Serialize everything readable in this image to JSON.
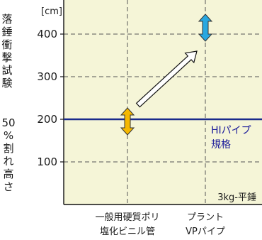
{
  "chart_data": {
    "type": "scatter",
    "categories": [
      "一般用硬質ポリ\n塩化ビニル管",
      "プラント\nVPパイプ"
    ],
    "series": [
      {
        "values": [
          195,
          415
        ]
      }
    ],
    "ylabel_lines": [
      "落錘衝撃試験",
      "50%割れ高さ"
    ],
    "y_unit": "[cm]",
    "yticks": [
      100,
      200,
      300,
      400
    ],
    "ylim": [
      20,
      480
    ],
    "grid": true,
    "reference_line": {
      "value": 200,
      "label": "HIパイプ\n規格",
      "color": "#1a2a8c"
    },
    "annotation": "3kg-平錘",
    "marker_colors": [
      "#f5b800",
      "#29a8e0"
    ],
    "background": "#f5f5d7",
    "legend": "none"
  }
}
